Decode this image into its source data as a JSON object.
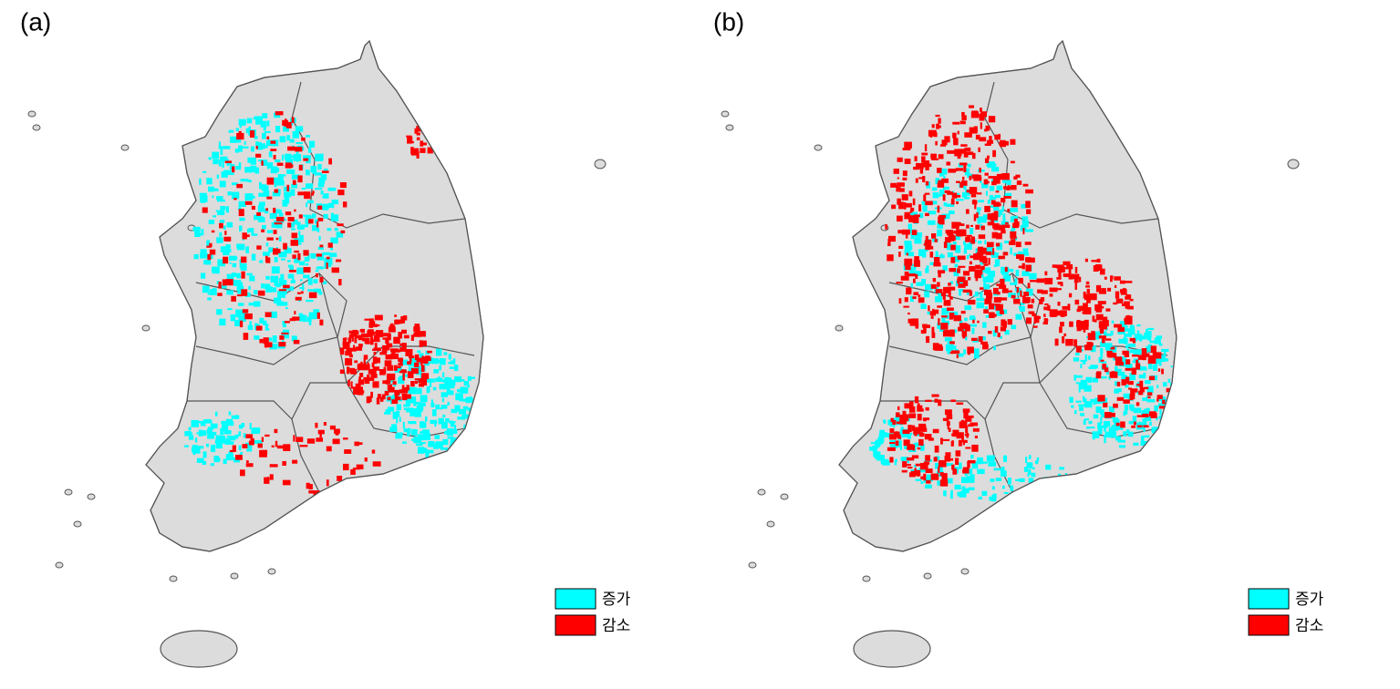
{
  "panels": [
    {
      "label": "(a)",
      "legend": [
        {
          "label": "증가",
          "color": "#00ffff"
        },
        {
          "label": "감소",
          "color": "#ff0000"
        }
      ]
    },
    {
      "label": "(b)",
      "legend": [
        {
          "label": "증가",
          "color": "#00ffff"
        },
        {
          "label": "감소",
          "color": "#ff0000"
        }
      ]
    }
  ]
}
